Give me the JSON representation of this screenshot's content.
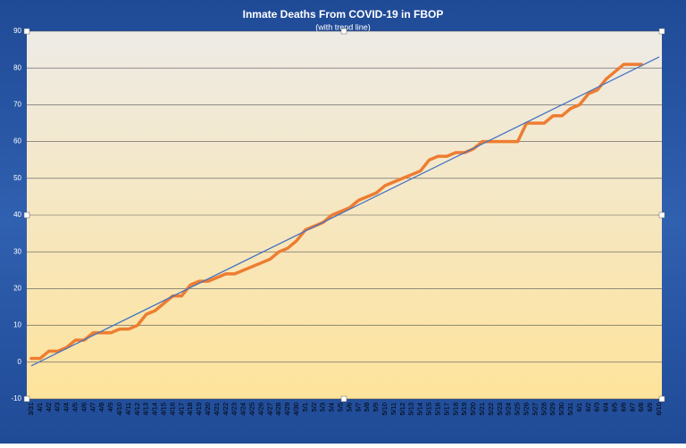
{
  "chart_data": {
    "type": "line",
    "title": "Inmate Deaths From COVID-19 in FBOP",
    "subtitle": "(with trend line)",
    "categories": [
      "3/31",
      "4/1",
      "4/2",
      "4/3",
      "4/4",
      "4/5",
      "4/6",
      "4/7",
      "4/8",
      "4/9",
      "4/10",
      "4/11",
      "4/12",
      "4/13",
      "4/14",
      "4/15",
      "4/16",
      "4/17",
      "4/18",
      "4/19",
      "4/20",
      "4/21",
      "4/22",
      "4/23",
      "4/24",
      "4/25",
      "4/26",
      "4/27",
      "4/28",
      "4/29",
      "4/30",
      "5/1",
      "5/2",
      "5/3",
      "5/4",
      "5/5",
      "5/6",
      "5/7",
      "5/8",
      "5/9",
      "5/10",
      "5/11",
      "5/12",
      "5/13",
      "5/14",
      "5/15",
      "5/16",
      "5/17",
      "5/18",
      "5/19",
      "5/20",
      "5/21",
      "5/22",
      "5/23",
      "5/24",
      "5/25",
      "5/26",
      "5/27",
      "5/28",
      "5/29",
      "5/30",
      "5/31",
      "6/1",
      "6/2",
      "6/3",
      "6/4",
      "6/5",
      "6/6",
      "6/7",
      "6/8",
      "6/9",
      "6/10"
    ],
    "series": [
      {
        "color": "#ed7d31",
        "values": [
          1,
          1,
          3,
          3,
          4,
          6,
          6,
          8,
          8,
          8,
          9,
          9,
          10,
          13,
          14,
          16,
          18,
          18,
          21,
          22,
          22,
          23,
          24,
          24,
          25,
          26,
          27,
          28,
          30,
          31,
          33,
          36,
          37,
          38,
          40,
          41,
          42,
          44,
          45,
          46,
          48,
          49,
          50,
          51,
          52,
          55,
          56,
          56,
          57,
          57,
          58,
          60,
          60,
          60,
          60,
          60,
          65,
          65,
          65,
          67,
          67,
          69,
          70,
          73,
          74,
          77,
          79,
          81,
          81,
          81,
          null,
          null
        ]
      }
    ],
    "trend_line": {
      "color": "#4472c4",
      "start": -1,
      "end": 83
    },
    "ylim": [
      -10,
      90
    ],
    "yticks": [
      -10,
      0,
      10,
      20,
      30,
      40,
      50,
      60,
      70,
      80,
      90
    ],
    "grid": true
  }
}
